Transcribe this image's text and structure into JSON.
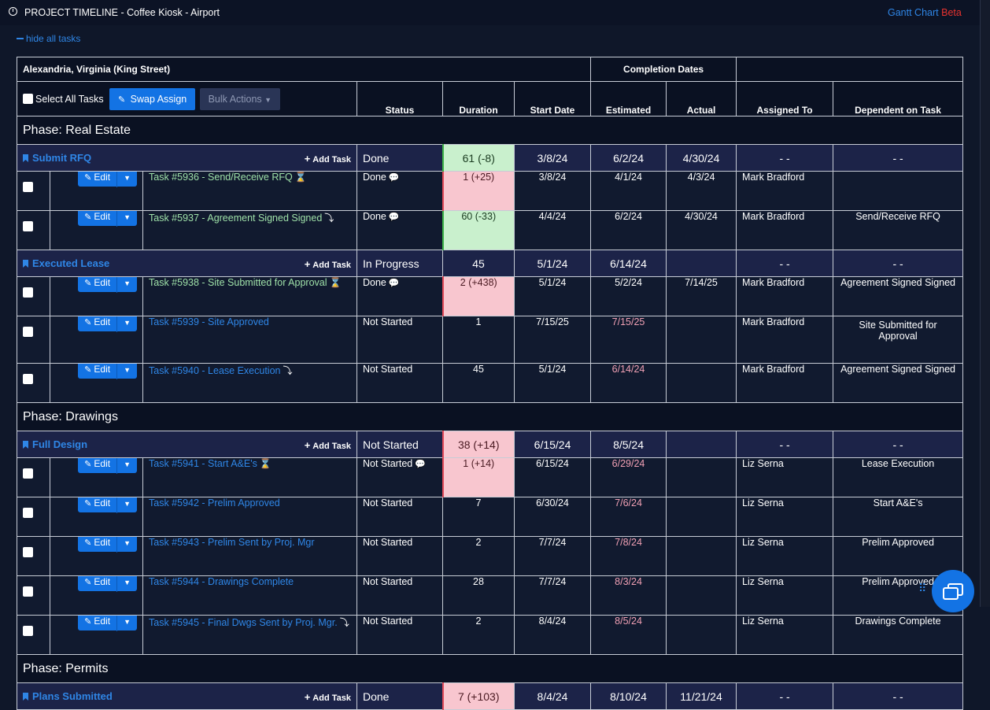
{
  "topbar": {
    "title": "PROJECT TIMELINE - Coffee Kiosk - Airport",
    "gantt": "Gantt Chart",
    "beta": "Beta"
  },
  "hide_link": "hide all tasks",
  "header": {
    "location": "Alexandria, Virginia (King Street)",
    "completion_dates": "Completion Dates",
    "select_all": "Select All Tasks",
    "swap_assign": "Swap Assign",
    "bulk_actions": "Bulk Actions",
    "status": "Status",
    "duration": "Duration",
    "start_date": "Start Date",
    "estimated": "Estimated",
    "actual": "Actual",
    "assigned_to": "Assigned To",
    "dependent": "Dependent on Task"
  },
  "labels": {
    "add_task": "Add Task",
    "edit": "Edit"
  },
  "phases": [
    {
      "title": "Phase: Real Estate"
    },
    {
      "title": "Phase: Drawings"
    },
    {
      "title": "Phase: Permits"
    }
  ],
  "groups": [
    {
      "name": "Submit RFQ",
      "status": "Done",
      "duration": "61 (-8)",
      "start": "3/8/24",
      "estimated": "6/2/24",
      "actual": "4/30/24",
      "assigned": "- -",
      "dependent": "- -"
    },
    {
      "name": "Executed Lease",
      "status": "In Progress",
      "duration": "45",
      "start": "5/1/24",
      "estimated": "6/14/24",
      "actual": "",
      "assigned": "- -",
      "dependent": "- -"
    },
    {
      "name": "Full Design",
      "status": "Not Started",
      "duration": "38 (+14)",
      "start": "6/15/24",
      "estimated": "8/5/24",
      "actual": "",
      "assigned": "- -",
      "dependent": "- -"
    },
    {
      "name": "Plans Submitted",
      "status": "Done",
      "duration": "7 (+103)",
      "start": "8/4/24",
      "estimated": "8/10/24",
      "actual": "11/21/24",
      "assigned": "- -",
      "dependent": "- -"
    }
  ],
  "tasks": [
    {
      "name": "Task #5936 - Send/Receive RFQ",
      "status": "Done",
      "duration": "1 (+25)",
      "start": "3/8/24",
      "estimated": "4/1/24",
      "actual": "4/3/24",
      "assigned": "Mark Bradford",
      "dependent": ""
    },
    {
      "name": "Task #5937 - Agreement Signed Signed",
      "status": "Done",
      "duration": "60 (-33)",
      "start": "4/4/24",
      "estimated": "6/2/24",
      "actual": "4/30/24",
      "assigned": "Mark Bradford",
      "dependent": "Send/Receive RFQ"
    },
    {
      "name": "Task #5938 - Site Submitted for Approval",
      "status": "Done",
      "duration": "2 (+438)",
      "start": "5/1/24",
      "estimated": "5/2/24",
      "actual": "7/14/25",
      "assigned": "Mark Bradford",
      "dependent": "Agreement Signed Signed"
    },
    {
      "name": "Task #5939 - Site Approved",
      "status": "Not Started",
      "duration": "1",
      "start": "7/15/25",
      "estimated": "7/15/25",
      "actual": "",
      "assigned": "Mark Bradford",
      "dependent": "Site Submitted for Approval"
    },
    {
      "name": "Task #5940 - Lease Execution",
      "status": "Not Started",
      "duration": "45",
      "start": "5/1/24",
      "estimated": "6/14/24",
      "actual": "",
      "assigned": "Mark Bradford",
      "dependent": "Agreement Signed Signed"
    },
    {
      "name": "Task #5941 - Start A&E's",
      "status": "Not Started",
      "duration": "1 (+14)",
      "start": "6/15/24",
      "estimated": "6/29/24",
      "actual": "",
      "assigned": "Liz Serna",
      "dependent": "Lease Execution"
    },
    {
      "name": "Task #5942 - Prelim Approved",
      "status": "Not Started",
      "duration": "7",
      "start": "6/30/24",
      "estimated": "7/6/24",
      "actual": "",
      "assigned": "Liz Serna",
      "dependent": "Start A&E's"
    },
    {
      "name": "Task #5943 - Prelim Sent by Proj. Mgr",
      "status": "Not Started",
      "duration": "2",
      "start": "7/7/24",
      "estimated": "7/8/24",
      "actual": "",
      "assigned": "Liz Serna",
      "dependent": "Prelim Approved"
    },
    {
      "name": "Task #5944 - Drawings Complete",
      "status": "Not Started",
      "duration": "28",
      "start": "7/7/24",
      "estimated": "8/3/24",
      "actual": "",
      "assigned": "Liz Serna",
      "dependent": "Prelim Approved"
    },
    {
      "name": "Task #5945 - Final Dwgs Sent by Proj. Mgr.",
      "status": "Not Started",
      "duration": "2",
      "start": "8/4/24",
      "estimated": "8/5/24",
      "actual": "",
      "assigned": "Liz Serna",
      "dependent": "Drawings Complete"
    }
  ]
}
